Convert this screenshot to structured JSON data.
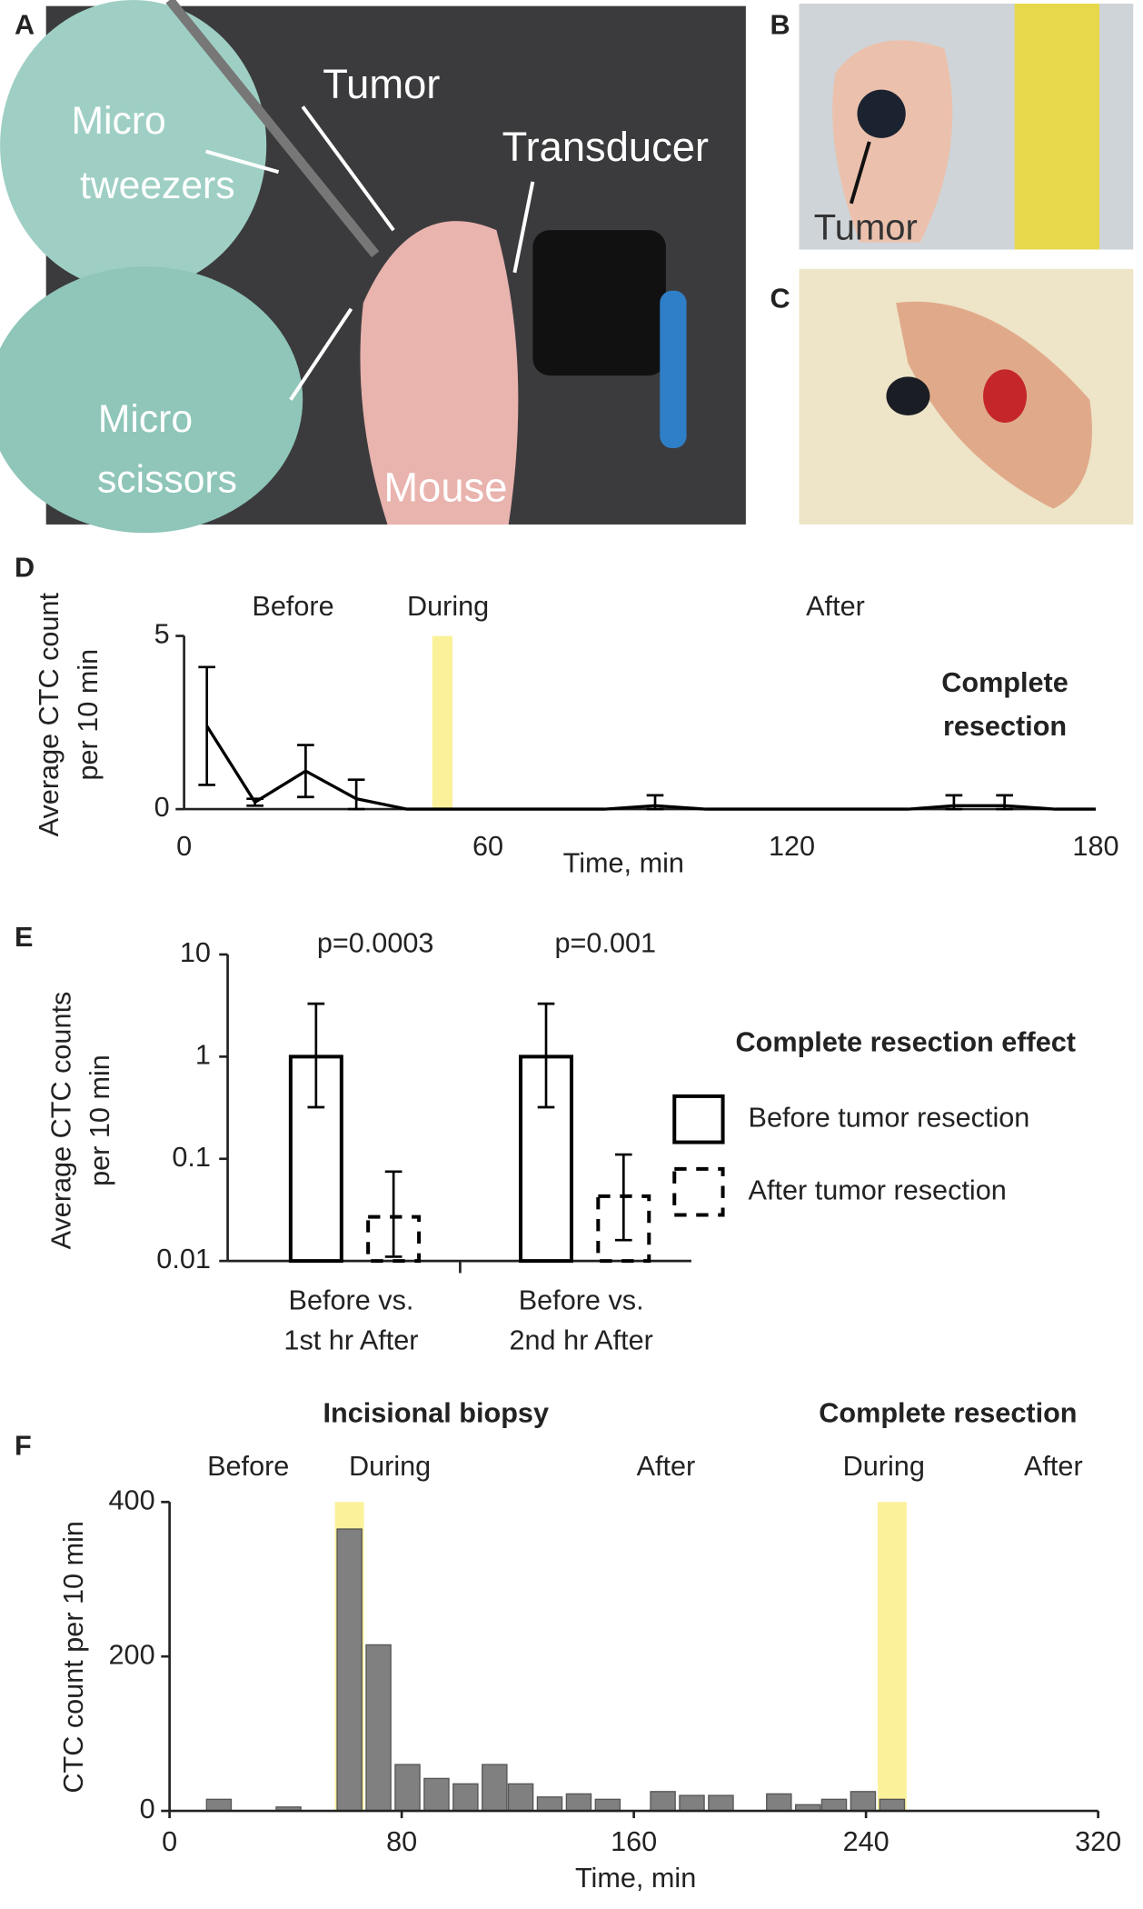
{
  "figure": {
    "panel_letters": [
      "A",
      "B",
      "C",
      "D",
      "E",
      "F"
    ],
    "photo_a_labels": [
      "Tumor",
      "Transducer",
      "Micro",
      "tweezers",
      "Micro",
      "scissors",
      "Mouse"
    ],
    "photo_b_label": "Tumor"
  },
  "chart_data": [
    {
      "type": "line",
      "ylabel": [
        "Average CTC count",
        "per 10 min"
      ],
      "xlabel": "Time, min",
      "phases": [
        "Before",
        "During",
        "After"
      ],
      "annotation": [
        "Complete",
        "resection"
      ],
      "x": [
        4.5,
        14,
        24,
        34,
        44,
        63,
        73,
        83,
        93,
        103,
        113,
        123,
        133,
        143,
        152,
        162,
        172,
        180
      ],
      "values": [
        2.4,
        0.2,
        1.1,
        0.3,
        0,
        0,
        0,
        0,
        0.1,
        0,
        0,
        0,
        0,
        0,
        0.1,
        0.1,
        0,
        0
      ],
      "errors": [
        1.7,
        0.1,
        0.75,
        0.55,
        null,
        null,
        null,
        null,
        0.3,
        null,
        null,
        null,
        null,
        null,
        0.3,
        0.3,
        null,
        null
      ],
      "color": "#000000",
      "highlight": [
        49,
        53
      ],
      "highlight_color": "#fbf19a",
      "xlim": [
        0,
        180
      ],
      "xticks": [
        0,
        60,
        120,
        180
      ],
      "ylim": [
        0,
        5
      ],
      "yticks": [
        0,
        5
      ]
    },
    {
      "type": "bar",
      "log_y": true,
      "ylabel": [
        "Average CTC counts",
        "per 10 min"
      ],
      "categories": [
        [
          "Before vs.",
          "1st hr After"
        ],
        [
          "Before vs.",
          "2nd hr After"
        ]
      ],
      "annotations": [
        "p=0.0003",
        "p=0.001"
      ],
      "legend_title": "Complete resection effect",
      "series": [
        {
          "name": "Before tumor resection",
          "style": "solid",
          "color": "#000000",
          "values": [
            1,
            1
          ],
          "ci_low": [
            0.32,
            0.32
          ],
          "ci_high": [
            3.3,
            3.3
          ]
        },
        {
          "name": "After tumor resection",
          "style": "dashed",
          "color": "#000000",
          "values": [
            0.027,
            0.043
          ],
          "ci_low": [
            0.011,
            0.016
          ],
          "ci_high": [
            0.075,
            0.11
          ]
        }
      ],
      "ylim": [
        0.01,
        10
      ],
      "yticks": [
        0.01,
        0.1,
        1,
        10
      ]
    },
    {
      "type": "histbar",
      "ylabel": "CTC count per 10 min",
      "xlabel": "Time, min",
      "titles": [
        "Incisional biopsy",
        "Complete resection"
      ],
      "phases": [
        "Before",
        "During",
        "After",
        "During",
        "After"
      ],
      "x": [
        17,
        41,
        62,
        72,
        82,
        92,
        102,
        112,
        121,
        131,
        141,
        151,
        170,
        180,
        190,
        210,
        220,
        229,
        239,
        249
      ],
      "values": [
        15,
        5,
        365,
        215,
        60,
        42,
        35,
        60,
        35,
        18,
        22,
        15,
        25,
        20,
        20,
        22,
        8,
        15,
        25,
        15
      ],
      "color": "#808080",
      "highlights": [
        [
          57,
          67
        ],
        [
          244,
          254
        ]
      ],
      "highlight_color": "#fbf19a",
      "xlim": [
        0,
        320
      ],
      "xticks": [
        0,
        80,
        160,
        240,
        320
      ],
      "ylim": [
        0,
        400
      ],
      "yticks": [
        0,
        200,
        400
      ]
    }
  ]
}
